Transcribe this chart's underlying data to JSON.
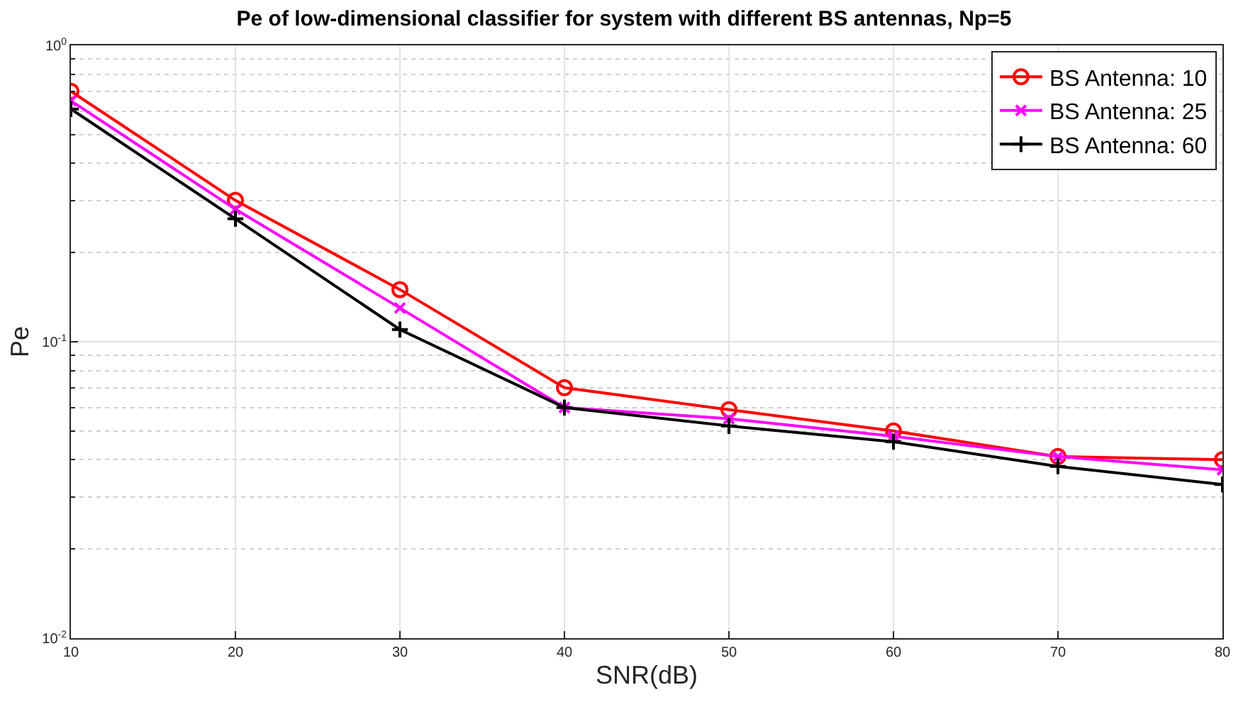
{
  "chart_data": {
    "type": "line",
    "title": "Pe of low-dimensional classifier for system with different BS antennas, Np=5",
    "xlabel": "SNR(dB)",
    "ylabel": "Pe",
    "x": [
      10,
      20,
      30,
      40,
      50,
      60,
      70,
      80
    ],
    "series": [
      {
        "name": "BS Antenna: 10",
        "color": "#ff0000",
        "marker": "circle",
        "values": [
          0.7,
          0.3,
          0.15,
          0.07,
          0.059,
          0.05,
          0.041,
          0.04
        ]
      },
      {
        "name": "BS Antenna: 25",
        "color": "#ff00ff",
        "marker": "cross",
        "values": [
          0.65,
          0.28,
          0.13,
          0.06,
          0.055,
          0.048,
          0.041,
          0.037
        ]
      },
      {
        "name": "BS Antenna: 60",
        "color": "#000000",
        "marker": "plus",
        "values": [
          0.61,
          0.26,
          0.11,
          0.06,
          0.052,
          0.046,
          0.038,
          0.033
        ]
      }
    ],
    "log": "y",
    "xlim": [
      10,
      80
    ],
    "xticks": [
      10,
      20,
      30,
      40,
      50,
      60,
      70,
      80
    ],
    "ylim": [
      0.01,
      1
    ],
    "yticks": [
      {
        "value": 0.01,
        "label": "10$^{-2}$"
      },
      {
        "value": 0.1,
        "label": "10$^{-1}$"
      },
      {
        "value": 1,
        "label": "10$^{0}$"
      }
    ],
    "grid": true,
    "legend": "top right",
    "line_style": "solid"
  }
}
